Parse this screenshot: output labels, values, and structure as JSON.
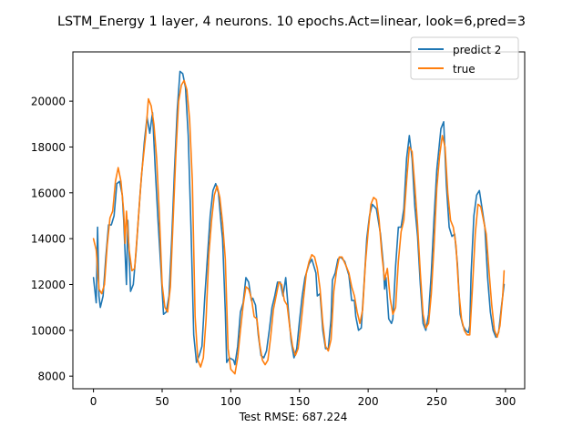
{
  "chart_data": {
    "type": "line",
    "title": "LSTM_Energy 1 layer, 4 neurons. 10 epochs.Act=linear, look=6,pred=3",
    "xlabel": "Test RMSE: 687.224",
    "ylabel": "",
    "xlim": [
      -15,
      314
    ],
    "ylim": [
      7450,
      22150
    ],
    "xticks": [
      0,
      50,
      100,
      150,
      200,
      250,
      300
    ],
    "yticks": [
      8000,
      10000,
      12000,
      14000,
      16000,
      18000,
      20000
    ],
    "grid": false,
    "legend": "top-right",
    "colors": {
      "predict": "#1f77b4",
      "true": "#ff7f0e"
    },
    "series": [
      {
        "name": "predict 2",
        "points": [
          [
            0,
            12300
          ],
          [
            2,
            11200
          ],
          [
            3,
            14500
          ],
          [
            4,
            11500
          ],
          [
            5,
            11000
          ],
          [
            7,
            11500
          ],
          [
            9,
            13200
          ],
          [
            11,
            14600
          ],
          [
            13,
            14600
          ],
          [
            15,
            15000
          ],
          [
            17,
            16400
          ],
          [
            19,
            16500
          ],
          [
            21,
            15900
          ],
          [
            22,
            14800
          ],
          [
            24,
            12000
          ],
          [
            25,
            14800
          ],
          [
            27,
            11700
          ],
          [
            29,
            12000
          ],
          [
            31,
            13400
          ],
          [
            34,
            16000
          ],
          [
            37,
            18200
          ],
          [
            39,
            19300
          ],
          [
            41,
            18600
          ],
          [
            43,
            19500
          ],
          [
            45,
            17000
          ],
          [
            47,
            14800
          ],
          [
            49,
            12800
          ],
          [
            51,
            10700
          ],
          [
            53,
            10800
          ],
          [
            55,
            11500
          ],
          [
            57,
            14000
          ],
          [
            59,
            17000
          ],
          [
            61,
            19600
          ],
          [
            63,
            21300
          ],
          [
            65,
            21200
          ],
          [
            67,
            20600
          ],
          [
            69,
            18500
          ],
          [
            71,
            14500
          ],
          [
            73,
            9800
          ],
          [
            75,
            8600
          ],
          [
            77,
            8900
          ],
          [
            79,
            9300
          ],
          [
            81,
            11400
          ],
          [
            83,
            13200
          ],
          [
            85,
            15000
          ],
          [
            87,
            16100
          ],
          [
            89,
            16400
          ],
          [
            91,
            16000
          ],
          [
            93,
            14600
          ],
          [
            94,
            14000
          ],
          [
            96,
            10800
          ],
          [
            97,
            8600
          ],
          [
            99,
            8800
          ],
          [
            102,
            8700
          ],
          [
            103,
            8500
          ],
          [
            105,
            9300
          ],
          [
            107,
            10800
          ],
          [
            109,
            11200
          ],
          [
            111,
            12300
          ],
          [
            113,
            12100
          ],
          [
            115,
            11300
          ],
          [
            116,
            11400
          ],
          [
            118,
            11100
          ],
          [
            120,
            9800
          ],
          [
            122,
            8900
          ],
          [
            124,
            8800
          ],
          [
            126,
            9100
          ],
          [
            128,
            10000
          ],
          [
            130,
            11000
          ],
          [
            132,
            11500
          ],
          [
            134,
            12100
          ],
          [
            136,
            12100
          ],
          [
            138,
            11500
          ],
          [
            140,
            12300
          ],
          [
            142,
            10800
          ],
          [
            144,
            9500
          ],
          [
            146,
            8800
          ],
          [
            148,
            9200
          ],
          [
            150,
            10400
          ],
          [
            152,
            11500
          ],
          [
            154,
            12300
          ],
          [
            157,
            12900
          ],
          [
            159,
            13100
          ],
          [
            162,
            12500
          ],
          [
            163,
            11500
          ],
          [
            165,
            11600
          ],
          [
            167,
            10000
          ],
          [
            169,
            9200
          ],
          [
            171,
            9200
          ],
          [
            173,
            10500
          ],
          [
            174,
            12200
          ],
          [
            176,
            12500
          ],
          [
            178,
            13100
          ],
          [
            180,
            13200
          ],
          [
            183,
            13000
          ],
          [
            186,
            12400
          ],
          [
            188,
            11300
          ],
          [
            190,
            11300
          ],
          [
            191,
            10600
          ],
          [
            193,
            10000
          ],
          [
            195,
            10100
          ],
          [
            197,
            12000
          ],
          [
            199,
            14000
          ],
          [
            201,
            15000
          ],
          [
            203,
            15500
          ],
          [
            206,
            15300
          ],
          [
            209,
            14200
          ],
          [
            211,
            12900
          ],
          [
            212,
            11800
          ],
          [
            213,
            12300
          ],
          [
            214,
            11400
          ],
          [
            215,
            10500
          ],
          [
            217,
            10300
          ],
          [
            218,
            10500
          ],
          [
            220,
            12800
          ],
          [
            222,
            14500
          ],
          [
            224,
            14500
          ],
          [
            226,
            15300
          ],
          [
            228,
            17500
          ],
          [
            230,
            18500
          ],
          [
            232,
            17500
          ],
          [
            234,
            15400
          ],
          [
            236,
            14100
          ],
          [
            238,
            12000
          ],
          [
            240,
            10300
          ],
          [
            242,
            10000
          ],
          [
            244,
            10700
          ],
          [
            246,
            12500
          ],
          [
            248,
            14900
          ],
          [
            250,
            17000
          ],
          [
            253,
            18800
          ],
          [
            255,
            19100
          ],
          [
            257,
            16300
          ],
          [
            259,
            14500
          ],
          [
            261,
            14100
          ],
          [
            263,
            14200
          ],
          [
            265,
            12900
          ],
          [
            267,
            10700
          ],
          [
            269,
            10200
          ],
          [
            271,
            10000
          ],
          [
            273,
            9900
          ],
          [
            274,
            10200
          ],
          [
            275,
            12500
          ],
          [
            277,
            15000
          ],
          [
            279,
            15900
          ],
          [
            281,
            16100
          ],
          [
            283,
            15300
          ],
          [
            285,
            14500
          ],
          [
            287,
            12300
          ],
          [
            289,
            10800
          ],
          [
            291,
            10000
          ],
          [
            293,
            9700
          ],
          [
            295,
            9900
          ],
          [
            297,
            11000
          ],
          [
            299,
            12000
          ]
        ]
      },
      {
        "name": "true",
        "points": [
          [
            0,
            14000
          ],
          [
            2,
            13500
          ],
          [
            4,
            11800
          ],
          [
            6,
            11600
          ],
          [
            8,
            12000
          ],
          [
            10,
            13700
          ],
          [
            12,
            14900
          ],
          [
            14,
            15200
          ],
          [
            16,
            16500
          ],
          [
            18,
            17100
          ],
          [
            20,
            16500
          ],
          [
            22,
            15200
          ],
          [
            23,
            13800
          ],
          [
            24,
            15200
          ],
          [
            26,
            13500
          ],
          [
            28,
            12600
          ],
          [
            30,
            12700
          ],
          [
            32,
            14300
          ],
          [
            35,
            16800
          ],
          [
            38,
            18500
          ],
          [
            40,
            20100
          ],
          [
            42,
            19800
          ],
          [
            44,
            19000
          ],
          [
            46,
            17500
          ],
          [
            48,
            15000
          ],
          [
            50,
            12000
          ],
          [
            52,
            11000
          ],
          [
            54,
            10800
          ],
          [
            56,
            11900
          ],
          [
            58,
            14800
          ],
          [
            60,
            17700
          ],
          [
            62,
            20000
          ],
          [
            64,
            20700
          ],
          [
            66,
            20900
          ],
          [
            68,
            20500
          ],
          [
            70,
            19200
          ],
          [
            72,
            16500
          ],
          [
            74,
            10600
          ],
          [
            76,
            8700
          ],
          [
            78,
            8400
          ],
          [
            80,
            8800
          ],
          [
            82,
            10500
          ],
          [
            84,
            13300
          ],
          [
            86,
            14800
          ],
          [
            88,
            15900
          ],
          [
            90,
            16300
          ],
          [
            92,
            15800
          ],
          [
            94,
            14700
          ],
          [
            96,
            13100
          ],
          [
            98,
            9200
          ],
          [
            100,
            8300
          ],
          [
            103,
            8100
          ],
          [
            105,
            8800
          ],
          [
            107,
            10000
          ],
          [
            109,
            11100
          ],
          [
            111,
            11900
          ],
          [
            113,
            11800
          ],
          [
            115,
            11400
          ],
          [
            117,
            10600
          ],
          [
            119,
            10500
          ],
          [
            121,
            9400
          ],
          [
            123,
            8700
          ],
          [
            125,
            8500
          ],
          [
            127,
            8700
          ],
          [
            129,
            9700
          ],
          [
            131,
            10900
          ],
          [
            133,
            11500
          ],
          [
            135,
            12100
          ],
          [
            137,
            12000
          ],
          [
            139,
            11300
          ],
          [
            141,
            11100
          ],
          [
            143,
            10100
          ],
          [
            145,
            9300
          ],
          [
            147,
            8900
          ],
          [
            149,
            9200
          ],
          [
            151,
            10200
          ],
          [
            153,
            11400
          ],
          [
            155,
            12500
          ],
          [
            157,
            13000
          ],
          [
            159,
            13300
          ],
          [
            161,
            13200
          ],
          [
            163,
            12700
          ],
          [
            165,
            11800
          ],
          [
            167,
            10300
          ],
          [
            169,
            9300
          ],
          [
            171,
            9100
          ],
          [
            173,
            9600
          ],
          [
            175,
            11700
          ],
          [
            177,
            12600
          ],
          [
            179,
            13200
          ],
          [
            181,
            13200
          ],
          [
            184,
            12800
          ],
          [
            186,
            12500
          ],
          [
            188,
            11900
          ],
          [
            190,
            11500
          ],
          [
            192,
            10800
          ],
          [
            194,
            10300
          ],
          [
            196,
            10900
          ],
          [
            198,
            12900
          ],
          [
            200,
            14300
          ],
          [
            202,
            15500
          ],
          [
            204,
            15800
          ],
          [
            206,
            15700
          ],
          [
            208,
            14800
          ],
          [
            210,
            13300
          ],
          [
            212,
            12200
          ],
          [
            214,
            12700
          ],
          [
            216,
            11400
          ],
          [
            218,
            10700
          ],
          [
            220,
            11000
          ],
          [
            222,
            13000
          ],
          [
            224,
            14300
          ],
          [
            226,
            14800
          ],
          [
            228,
            16500
          ],
          [
            230,
            18000
          ],
          [
            232,
            17800
          ],
          [
            234,
            16300
          ],
          [
            236,
            14600
          ],
          [
            238,
            12500
          ],
          [
            240,
            10700
          ],
          [
            242,
            10100
          ],
          [
            244,
            10300
          ],
          [
            246,
            11600
          ],
          [
            248,
            13700
          ],
          [
            250,
            16200
          ],
          [
            252,
            17600
          ],
          [
            254,
            18500
          ],
          [
            256,
            18000
          ],
          [
            258,
            16000
          ],
          [
            260,
            14800
          ],
          [
            262,
            14500
          ],
          [
            264,
            13700
          ],
          [
            266,
            11700
          ],
          [
            268,
            10500
          ],
          [
            270,
            10000
          ],
          [
            272,
            9800
          ],
          [
            274,
            9800
          ],
          [
            276,
            11900
          ],
          [
            278,
            14200
          ],
          [
            280,
            15500
          ],
          [
            282,
            15400
          ],
          [
            284,
            14800
          ],
          [
            286,
            14200
          ],
          [
            288,
            12600
          ],
          [
            290,
            11100
          ],
          [
            292,
            10000
          ],
          [
            294,
            9700
          ],
          [
            296,
            10200
          ],
          [
            298,
            11500
          ],
          [
            299,
            12600
          ]
        ]
      }
    ]
  }
}
